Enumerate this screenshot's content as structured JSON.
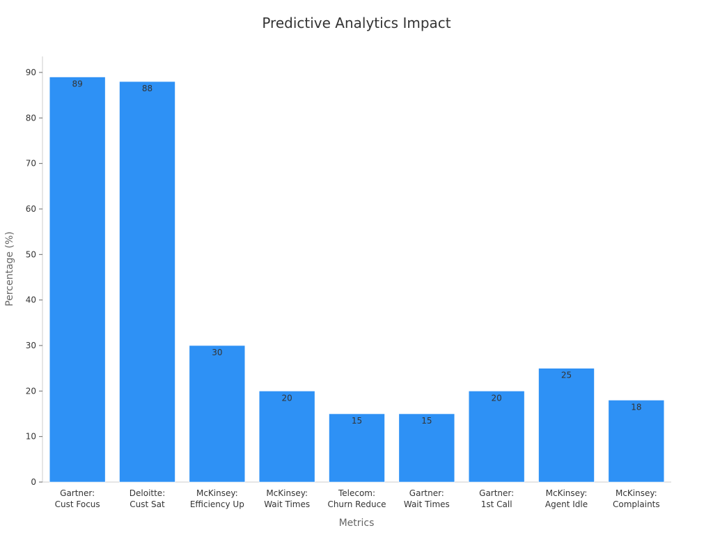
{
  "chart_data": {
    "type": "bar",
    "title": "Predictive Analytics Impact",
    "xlabel": "Metrics",
    "ylabel": "Percentage (%)",
    "categories": [
      [
        "Gartner:",
        "Cust Focus"
      ],
      [
        "Deloitte:",
        "Cust Sat"
      ],
      [
        "McKinsey:",
        "Efficiency Up"
      ],
      [
        "McKinsey:",
        "Wait Times"
      ],
      [
        "Telecom:",
        "Churn Reduce"
      ],
      [
        "Gartner:",
        "Wait Times"
      ],
      [
        "Gartner:",
        "1st Call"
      ],
      [
        "McKinsey:",
        "Agent Idle"
      ],
      [
        "McKinsey:",
        "Complaints"
      ]
    ],
    "values": [
      89,
      88,
      30,
      20,
      15,
      15,
      20,
      25,
      18
    ],
    "ylim": [
      0,
      94
    ],
    "yticks": [
      0,
      10,
      20,
      30,
      40,
      50,
      60,
      70,
      80,
      90
    ],
    "bar_color": "#2e91f5",
    "grid": false,
    "legend": false
  }
}
